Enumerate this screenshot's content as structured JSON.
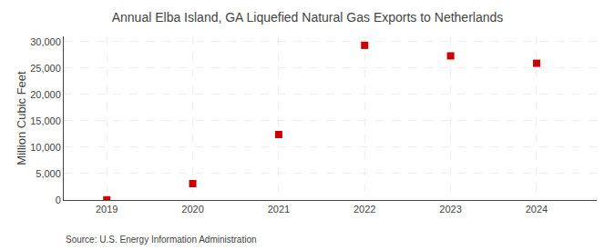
{
  "chart_data": {
    "type": "scatter",
    "title": "Annual Elba Island, GA Liquefied Natural Gas Exports to Netherlands",
    "y_label": "Million Cubic Feet",
    "annotations": [
      "Source: U.S. Energy Information Administration"
    ],
    "x": [
      2019,
      2020,
      2021,
      2022,
      2023,
      2024
    ],
    "values": [
      30,
      3100,
      12400,
      29300,
      27300,
      25900
    ],
    "color": "#CC0000",
    "marker": "square",
    "xlim": [
      2018.5,
      2024.7
    ],
    "xticks": [
      2019,
      2020,
      2021,
      2022,
      2023,
      2024
    ],
    "ylim": [
      0,
      31000
    ],
    "yticks": [
      0,
      {
        "value": 5000,
        "label": "5,000"
      },
      {
        "value": 10000,
        "label": "10,000"
      },
      {
        "value": 15000,
        "label": "15,000"
      },
      {
        "value": 20000,
        "label": "20,000"
      },
      {
        "value": 25000,
        "label": "25,000"
      },
      {
        "value": 30000,
        "label": "30,000"
      }
    ],
    "grid": true
  }
}
